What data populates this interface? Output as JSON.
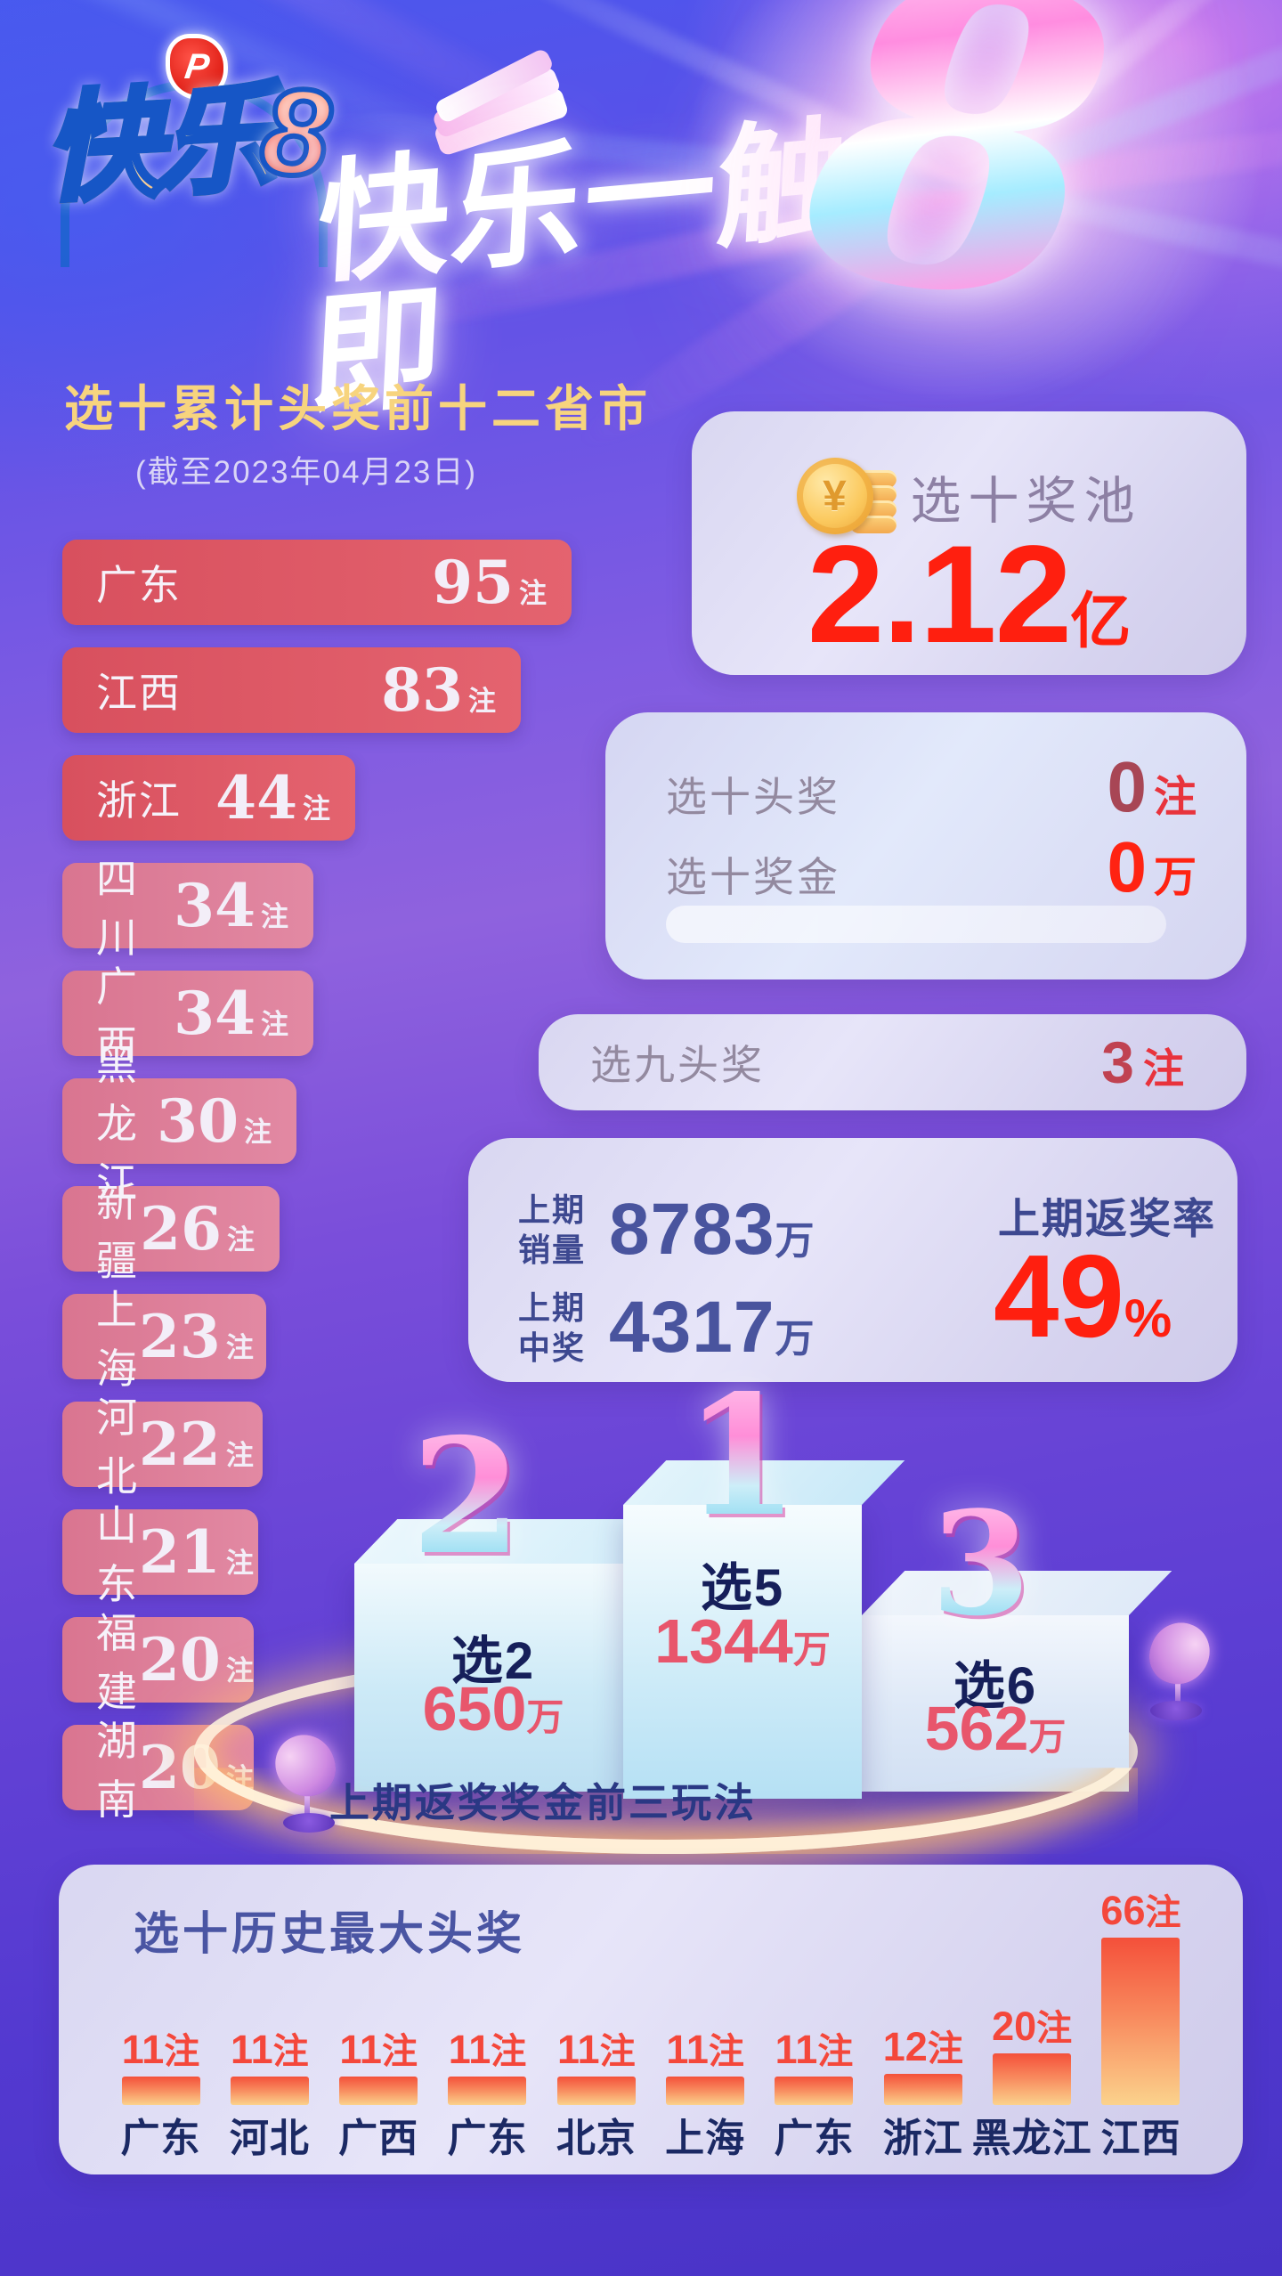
{
  "colors": {
    "gold": "#f7d47e",
    "red": "#ff1f0f",
    "navy": "#3d4890",
    "histred": "#f4473b"
  },
  "header": {
    "logo_main": "快乐",
    "logo_number": "8",
    "logo_emblem_icon": "china-welfare-lottery-emblem",
    "title": "快乐一触即",
    "big_number": "8"
  },
  "ranking": {
    "title": "选十累计头奖前十二省市",
    "date_note": "(截至2023年04月23日)",
    "unit": "注",
    "items": [
      {
        "province": "广东",
        "count": 95
      },
      {
        "province": "江西",
        "count": 83
      },
      {
        "province": "浙江",
        "count": 44
      },
      {
        "province": "四川",
        "count": 34
      },
      {
        "province": "广西",
        "count": 34
      },
      {
        "province": "黑龙江",
        "count": 30
      },
      {
        "province": "新疆",
        "count": 26
      },
      {
        "province": "上海",
        "count": 23
      },
      {
        "province": "河北",
        "count": 22
      },
      {
        "province": "山东",
        "count": 21
      },
      {
        "province": "福建",
        "count": 20
      },
      {
        "province": "湖南",
        "count": 20
      }
    ]
  },
  "pool_card": {
    "label": "选十奖池",
    "value": "2.12",
    "unit": "亿",
    "icon": "gold-coin-stack-icon"
  },
  "prize_card": {
    "rows": [
      {
        "label": "选十头奖",
        "value": "0",
        "unit": "注"
      },
      {
        "label": "选十奖金",
        "value": "0",
        "unit": "万"
      }
    ]
  },
  "pick9_card": {
    "label": "选九头奖",
    "value": "3",
    "unit": "注"
  },
  "stats_card": {
    "sales": {
      "label_line1": "上期",
      "label_line2": "销量",
      "value": "8783",
      "unit": "万"
    },
    "wins": {
      "label_line1": "上期",
      "label_line2": "中奖",
      "value": "4317",
      "unit": "万"
    },
    "rate": {
      "label": "上期返奖率",
      "value": "49",
      "unit": "%"
    }
  },
  "podium": {
    "caption": "上期返奖奖金前三玩法",
    "items": [
      {
        "rank": "1",
        "game": "选5",
        "amount": "1344",
        "unit": "万"
      },
      {
        "rank": "2",
        "game": "选2",
        "amount": "650",
        "unit": "万"
      },
      {
        "rank": "3",
        "game": "选6",
        "amount": "562",
        "unit": "万"
      }
    ]
  },
  "history": {
    "title": "选十历史最大头奖",
    "unit": "注",
    "bars": [
      {
        "province": "广东",
        "count": 11
      },
      {
        "province": "河北",
        "count": 11
      },
      {
        "province": "广西",
        "count": 11
      },
      {
        "province": "广东",
        "count": 11
      },
      {
        "province": "北京",
        "count": 11
      },
      {
        "province": "上海",
        "count": 11
      },
      {
        "province": "广东",
        "count": 11
      },
      {
        "province": "浙江",
        "count": 12
      },
      {
        "province": "黑龙江",
        "count": 20
      },
      {
        "province": "江西",
        "count": 66
      }
    ]
  },
  "chart_data": [
    {
      "type": "bar",
      "title": "选十累计头奖前十二省市 (截至2023年04月23日)",
      "orientation": "horizontal",
      "categories": [
        "广东",
        "江西",
        "浙江",
        "四川",
        "广西",
        "黑龙江",
        "新疆",
        "上海",
        "河北",
        "山东",
        "福建",
        "湖南"
      ],
      "values": [
        95,
        83,
        44,
        34,
        34,
        30,
        26,
        23,
        22,
        21,
        20,
        20
      ],
      "unit": "注",
      "xlabel": "",
      "ylabel": "",
      "grid": false,
      "legend": "none"
    },
    {
      "type": "bar",
      "title": "上期返奖奖金前三玩法",
      "categories": [
        "选5",
        "选2",
        "选6"
      ],
      "values": [
        1344,
        650,
        562
      ],
      "unit": "万",
      "note": "podium ranks 1,2,3",
      "grid": false,
      "legend": "none"
    },
    {
      "type": "bar",
      "title": "选十历史最大头奖",
      "categories": [
        "广东",
        "河北",
        "广西",
        "广东",
        "北京",
        "上海",
        "广东",
        "浙江",
        "黑龙江",
        "江西"
      ],
      "values": [
        11,
        11,
        11,
        11,
        11,
        11,
        11,
        12,
        20,
        66
      ],
      "unit": "注",
      "ylim": [
        0,
        70
      ],
      "grid": false,
      "legend": "none"
    }
  ]
}
